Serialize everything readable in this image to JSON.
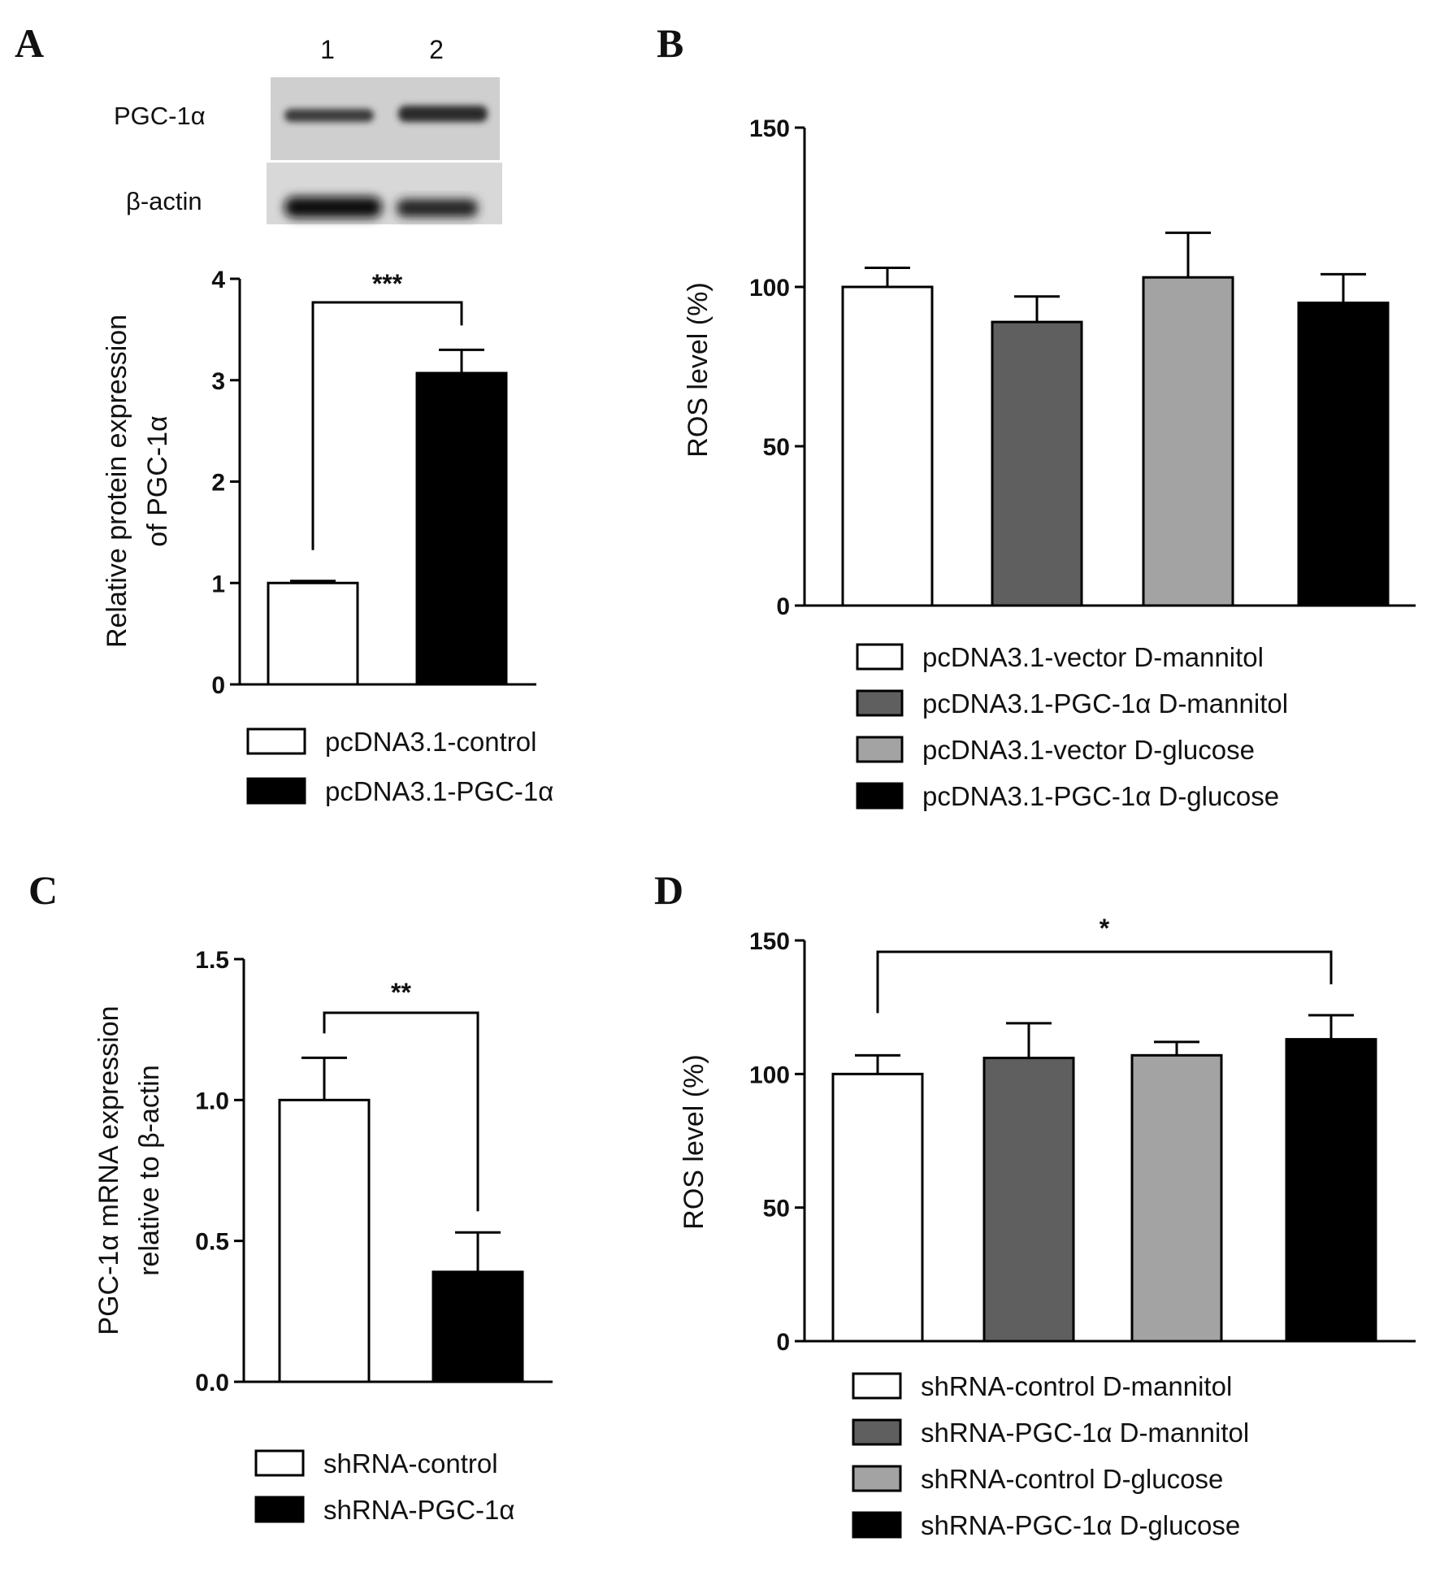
{
  "figure": {
    "panels": [
      "A",
      "B",
      "C",
      "D"
    ]
  },
  "blot": {
    "lanes": [
      "1",
      "2"
    ],
    "rows": [
      "PGC-1α",
      "β-actin"
    ]
  },
  "colors": {
    "white": "#ffffff",
    "dark_gray": "#5f5f5f",
    "light_gray": "#a3a3a3",
    "black": "#000000"
  },
  "chart_data": [
    {
      "panel": "A",
      "type": "bar",
      "categories": [
        "pcDNA3.1-control",
        "pcDNA3.1-PGC-1α"
      ],
      "values": [
        1.0,
        3.07
      ],
      "errors": [
        0.02,
        0.23
      ],
      "fills": [
        "#ffffff",
        "#000000"
      ],
      "ylabel": [
        "Relative protein expression",
        "of PGC-1α"
      ],
      "ylim": [
        0,
        4
      ],
      "yticks": [
        "0",
        "1",
        "2",
        "3",
        "4"
      ],
      "significance": [
        {
          "from": 0,
          "to": 1,
          "label": "***"
        }
      ],
      "legend": [
        "pcDNA3.1-control",
        "pcDNA3.1-PGC-1α"
      ],
      "legend_position": "bottom",
      "grid": false
    },
    {
      "panel": "B",
      "type": "bar",
      "categories": [
        "pcDNA3.1-vector D-mannitol",
        "pcDNA3.1-PGC-1α D-mannitol",
        "pcDNA3.1-vector D-glucose",
        "pcDNA3.1-PGC-1α D-glucose"
      ],
      "values": [
        100,
        89,
        103,
        95
      ],
      "errors": [
        6,
        8,
        14,
        9
      ],
      "fills": [
        "#ffffff",
        "#5f5f5f",
        "#a3a3a3",
        "#000000"
      ],
      "ylabel": [
        "ROS level (%)"
      ],
      "ylim": [
        0,
        150
      ],
      "yticks": [
        "0",
        "50",
        "100",
        "150"
      ],
      "significance": [],
      "legend": [
        "pcDNA3.1-vector D-mannitol",
        "pcDNA3.1-PGC-1α D-mannitol",
        "pcDNA3.1-vector D-glucose",
        "pcDNA3.1-PGC-1α D-glucose"
      ],
      "legend_position": "bottom",
      "grid": false
    },
    {
      "panel": "C",
      "type": "bar",
      "categories": [
        "shRNA-control",
        "shRNA-PGC-1α"
      ],
      "values": [
        1.0,
        0.39
      ],
      "errors": [
        0.15,
        0.14
      ],
      "fills": [
        "#ffffff",
        "#000000"
      ],
      "ylabel": [
        "PGC-1α mRNA expression",
        "relative to β-actin"
      ],
      "ylim": [
        0,
        1.5
      ],
      "yticks": [
        "0.0",
        "0.5",
        "1.0",
        "1.5"
      ],
      "significance": [
        {
          "from": 0,
          "to": 1,
          "label": "**"
        }
      ],
      "legend": [
        "shRNA-control",
        "shRNA-PGC-1α"
      ],
      "legend_position": "bottom",
      "grid": false
    },
    {
      "panel": "D",
      "type": "bar",
      "categories": [
        "shRNA-control D-mannitol",
        "shRNA-PGC-1α D-mannitol",
        "shRNA-control D-glucose",
        "shRNA-PGC-1α D-glucose"
      ],
      "values": [
        100,
        106,
        107,
        113
      ],
      "errors": [
        7,
        13,
        5,
        9
      ],
      "fills": [
        "#ffffff",
        "#5f5f5f",
        "#a3a3a3",
        "#000000"
      ],
      "ylabel": [
        "ROS level (%)"
      ],
      "ylim": [
        0,
        150
      ],
      "yticks": [
        "0",
        "50",
        "100",
        "150"
      ],
      "significance": [
        {
          "from": 0,
          "to": 3,
          "label": "*"
        }
      ],
      "legend": [
        "shRNA-control D-mannitol",
        "shRNA-PGC-1α D-mannitol",
        "shRNA-control D-glucose",
        "shRNA-PGC-1α D-glucose"
      ],
      "legend_position": "bottom",
      "grid": false
    }
  ]
}
